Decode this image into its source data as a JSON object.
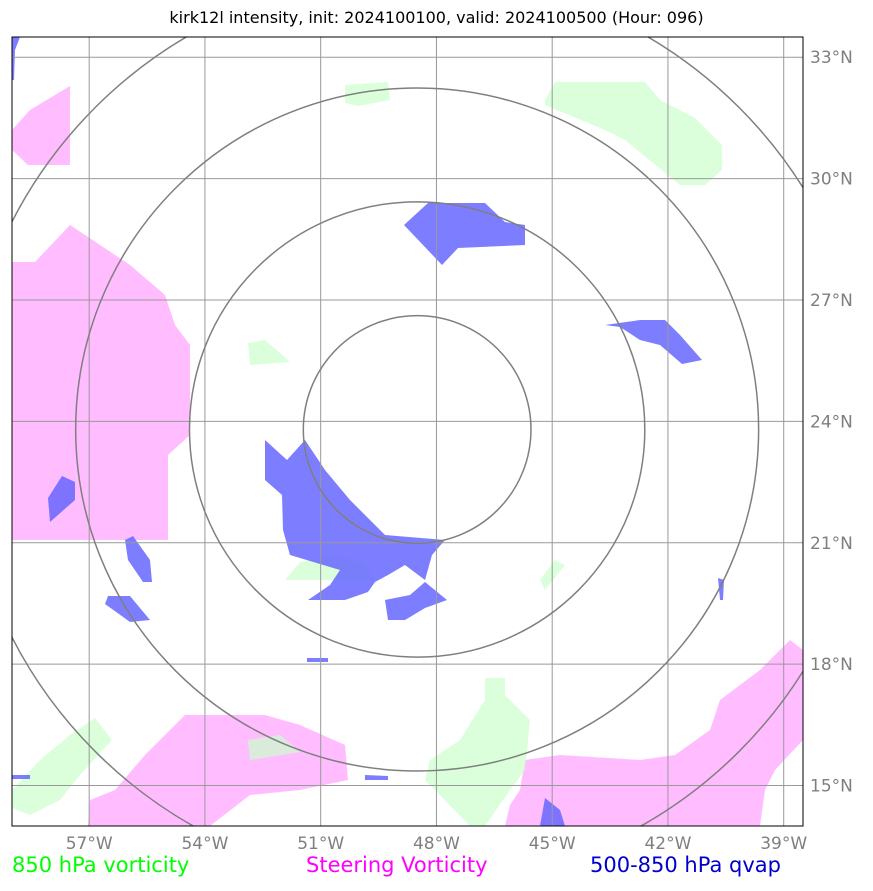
{
  "title": "kirk12l intensity, init: 2024100100, valid: 2024100500 (Hour: 096)",
  "map": {
    "lon_range": [
      -59,
      -38.5
    ],
    "lat_range": [
      14.0,
      33.5
    ],
    "lon_ticks": [
      {
        "value": -57,
        "label": "57°W"
      },
      {
        "value": -54,
        "label": "54°W"
      },
      {
        "value": -51,
        "label": "51°W"
      },
      {
        "value": -48,
        "label": "48°W"
      },
      {
        "value": -45,
        "label": "45°W"
      },
      {
        "value": -42,
        "label": "42°W"
      },
      {
        "value": -39,
        "label": "39°W"
      }
    ],
    "lat_ticks": [
      {
        "value": 33,
        "label": "33°N"
      },
      {
        "value": 30,
        "label": "30°N"
      },
      {
        "value": 27,
        "label": "27°N"
      },
      {
        "value": 24,
        "label": "24°N"
      },
      {
        "value": 21,
        "label": "21°N"
      },
      {
        "value": 18,
        "label": "18°N"
      },
      {
        "value": 15,
        "label": "15°N"
      }
    ],
    "storm_center": {
      "lon": -48.5,
      "lat": 23.8
    },
    "range_rings_deg": [
      2.95,
      5.9,
      8.85,
      11.8
    ],
    "colors": {
      "vort850": "#ccffcc",
      "steering": "#ff99ff",
      "qvap": "#6666ff",
      "grid": "#999999",
      "rings": "#7f7f7f"
    }
  },
  "legend": {
    "vort850": {
      "label": "850 hPa vorticity",
      "color": "#00ff00"
    },
    "steering": {
      "label": "Steering Vorticity",
      "color": "#ff00ff"
    },
    "qvap": {
      "label": "500-850 hPa qvap",
      "color": "#0000cc"
    }
  }
}
